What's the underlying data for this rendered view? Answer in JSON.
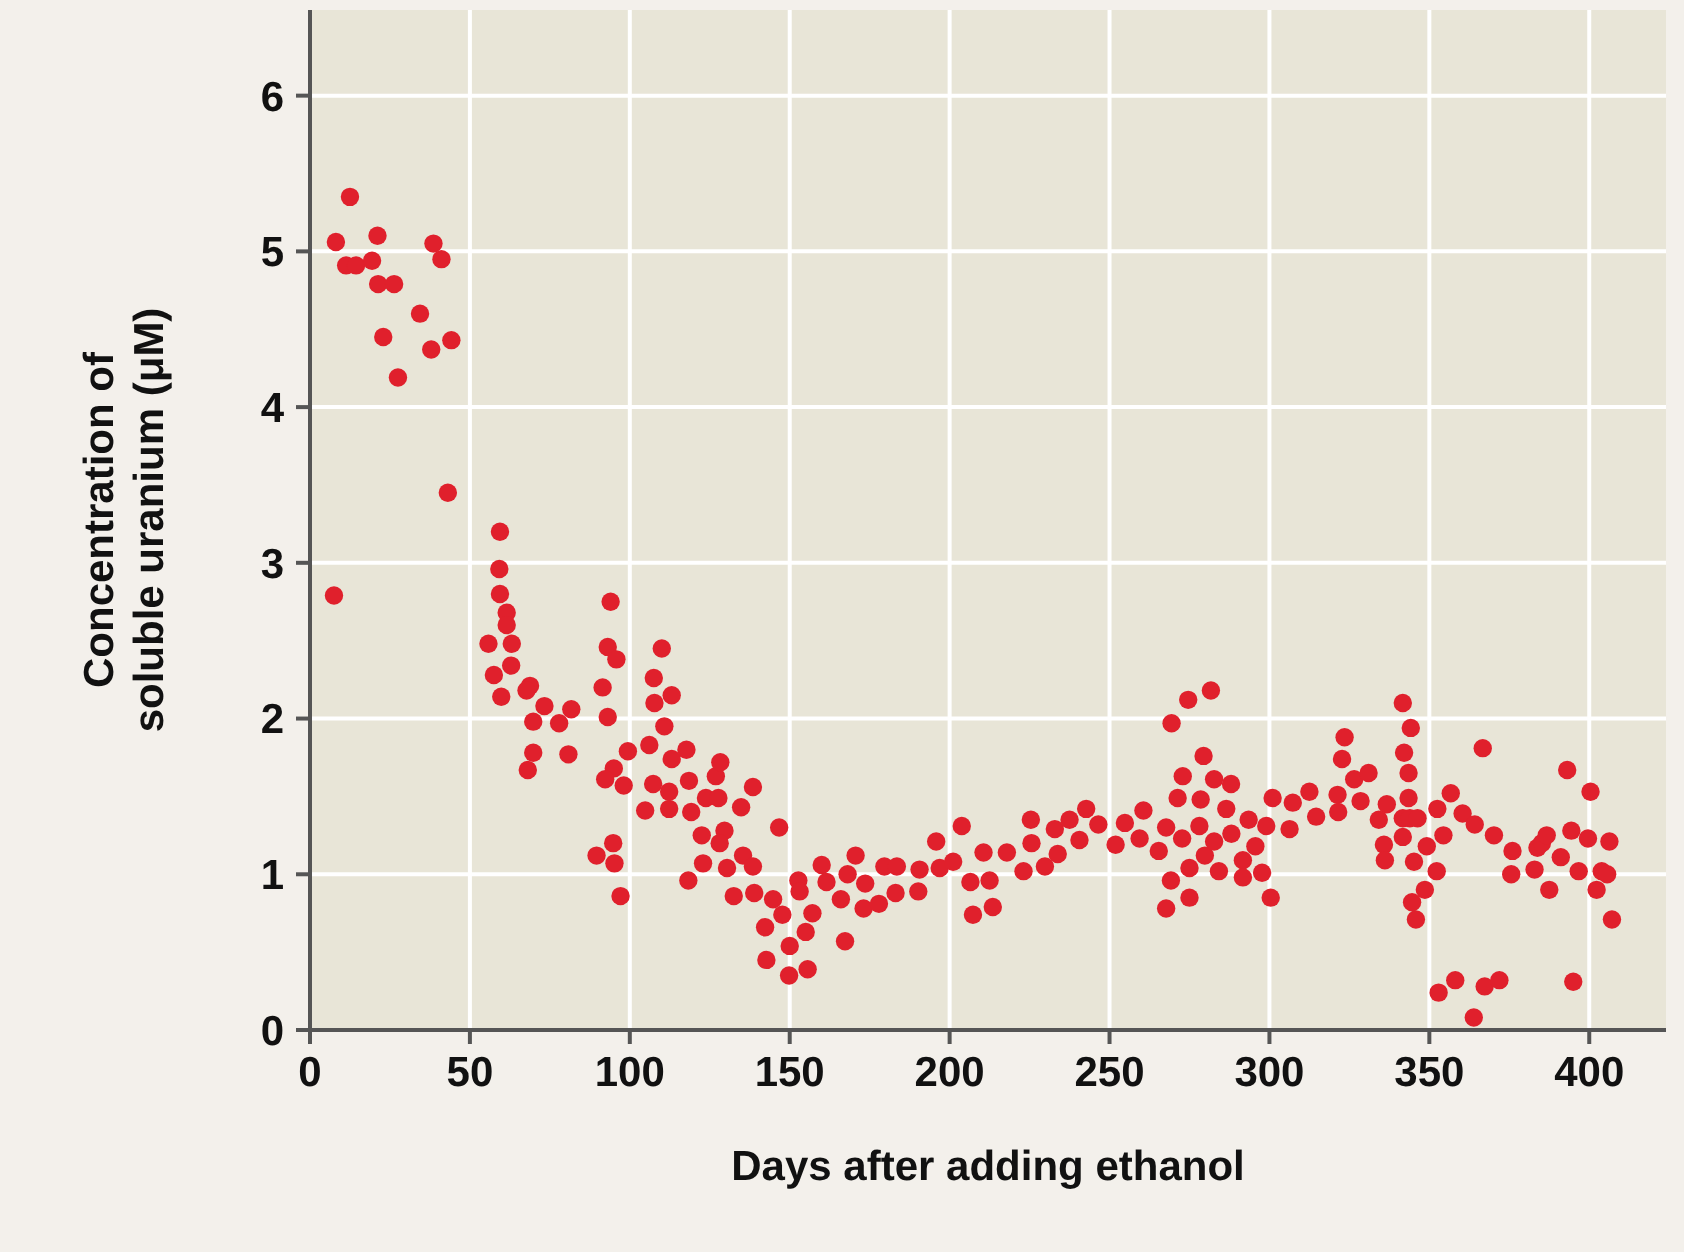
{
  "chart_data": {
    "type": "scatter",
    "xlabel": "Days after adding ethanol",
    "ylabel": "Concentration of\nsoluble uranium (μM)",
    "xlim": [
      0,
      424
    ],
    "ylim": [
      0,
      6.55
    ],
    "xticks": [
      0,
      50,
      100,
      150,
      200,
      250,
      300,
      350,
      400
    ],
    "yticks": [
      0,
      1,
      2,
      3,
      4,
      5,
      6
    ],
    "grid": true,
    "marker": "circle",
    "series": [
      {
        "color": "#e0202c",
        "x": [
          7.5,
          8.1,
          12.5,
          11.3,
          14.4,
          19.4,
          21.1,
          38.6,
          41.1,
          21.3,
          26.3,
          34.4,
          22.9,
          37.9,
          44.2,
          27.5,
          43.1,
          59.4,
          59.2,
          59.4,
          61.5,
          61.5,
          55.8,
          63.1,
          62.9,
          57.5,
          59.8,
          68.8,
          67.7,
          69.8,
          73.3,
          77.9,
          81.7,
          69.8,
          80.8,
          68.1,
          94.0,
          93.1,
          95.8,
          91.5,
          93.1,
          95.0,
          92.3,
          98.1,
          99.4,
          89.6,
          94.8,
          95.2,
          97.1,
          110,
          107.5,
          107.7,
          113.1,
          110.8,
          106.1,
          113.1,
          107.3,
          112.3,
          104.8,
          112.3,
          117.7,
          118.5,
          119.2,
          122.5,
          118.3,
          122.9,
          123.8,
          127.7,
          126.9,
          128.3,
          129.6,
          128.1,
          130.4,
          132.5,
          134.8,
          135.4,
          138.5,
          138.5,
          138.9,
          144.8,
          146.7,
          147.7,
          142.3,
          142.7,
          150,
          149.8,
          152.7,
          153.1,
          157.1,
          155,
          155.6,
          160,
          161.5,
          166,
          167.3,
          168.1,
          170.6,
          173.6,
          173.1,
          177.9,
          179.6,
          183.5,
          183.1,
          190.2,
          190.6,
          195.8,
          196.9,
          201.1,
          203.8,
          206.5,
          207.3,
          210.6,
          212.5,
          213.5,
          217.9,
          223.1,
          225.4,
          225.6,
          229.8,
          232.9,
          233.8,
          237.5,
          240.6,
          242.7,
          246.5,
          251.9,
          254.8,
          259.4,
          260.6,
          265.4,
          267.7,
          269.2,
          267.7,
          269.4,
          271.3,
          272.7,
          272.9,
          274.6,
          275,
          275,
          278.1,
          278.5,
          279.4,
          279.8,
          281.7,
          282.7,
          282.7,
          284.2,
          286.5,
          288,
          288.1,
          291.7,
          291.7,
          293.5,
          295.6,
          297.7,
          299,
          300.4,
          301,
          306.3,
          307.3,
          312.5,
          314.6,
          321.3,
          321.5,
          322.7,
          323.5,
          326.5,
          328.5,
          331,
          334.2,
          335.8,
          336.1,
          336.7,
          341.7,
          342.1,
          344.2,
          343.5,
          343.5,
          341.7,
          343.9,
          346.3,
          341.7,
          345.2,
          349.2,
          344.6,
          345.8,
          348.6,
          352.3,
          352.5,
          354.4,
          356.7,
          360.4,
          364.2,
          366.7,
          370.2,
          352.9,
          358.1,
          363.9,
          367.3,
          371.9,
          376,
          375.6,
          382.9,
          383.8,
          385.2,
          386.7,
          387.5,
          391.1,
          393.1,
          394.4,
          395,
          396.7,
          399.6,
          400.4,
          402.3,
          403.9,
          405.6,
          406.3,
          407.1
        ],
        "values": [
          2.79,
          5.06,
          5.35,
          4.91,
          4.91,
          4.94,
          5.1,
          5.05,
          4.95,
          4.79,
          4.79,
          4.6,
          4.45,
          4.37,
          4.43,
          4.19,
          3.45,
          3.2,
          2.96,
          2.8,
          2.68,
          2.6,
          2.48,
          2.48,
          2.34,
          2.28,
          2.14,
          2.21,
          2.18,
          1.98,
          2.08,
          1.97,
          2.06,
          1.78,
          1.77,
          1.67,
          2.75,
          2.46,
          2.38,
          2.2,
          2.01,
          1.68,
          1.61,
          1.57,
          1.79,
          1.12,
          1.2,
          1.07,
          0.86,
          2.45,
          2.26,
          2.1,
          2.15,
          1.95,
          1.83,
          1.74,
          1.58,
          1.53,
          1.41,
          1.42,
          1.8,
          1.6,
          1.4,
          1.25,
          0.96,
          1.07,
          1.49,
          1.49,
          1.63,
          1.72,
          1.28,
          1.2,
          1.04,
          0.86,
          1.43,
          1.12,
          1.56,
          1.05,
          0.88,
          0.84,
          1.3,
          0.74,
          0.66,
          0.45,
          0.54,
          0.35,
          0.96,
          0.89,
          0.75,
          0.63,
          0.39,
          1.06,
          0.95,
          0.84,
          0.57,
          1.0,
          1.12,
          0.94,
          0.78,
          0.81,
          1.05,
          1.05,
          0.88,
          0.89,
          1.03,
          1.21,
          1.04,
          1.08,
          1.31,
          0.95,
          0.74,
          1.14,
          0.96,
          0.79,
          1.14,
          1.02,
          1.35,
          1.2,
          1.05,
          1.29,
          1.13,
          1.35,
          1.22,
          1.42,
          1.32,
          1.19,
          1.33,
          1.23,
          1.41,
          1.15,
          1.3,
          0.96,
          0.78,
          1.97,
          1.49,
          1.23,
          1.63,
          2.12,
          1.04,
          0.85,
          1.31,
          1.48,
          1.76,
          1.12,
          2.18,
          1.61,
          1.21,
          1.02,
          1.42,
          1.58,
          1.26,
          1.09,
          0.98,
          1.35,
          1.18,
          1.01,
          1.31,
          0.85,
          1.49,
          1.29,
          1.46,
          1.53,
          1.37,
          1.51,
          1.4,
          1.74,
          1.88,
          1.61,
          1.47,
          1.65,
          1.35,
          1.19,
          1.09,
          1.45,
          2.1,
          1.78,
          1.94,
          1.65,
          1.49,
          1.36,
          1.36,
          1.36,
          1.24,
          1.08,
          1.18,
          0.82,
          0.71,
          0.9,
          1.02,
          1.42,
          1.25,
          1.52,
          1.39,
          1.32,
          1.81,
          1.25,
          0.24,
          0.32,
          0.08,
          0.28,
          0.32,
          1.15,
          1.0,
          1.03,
          1.17,
          1.2,
          1.25,
          0.9,
          1.11,
          1.67,
          1.28,
          0.31,
          1.02,
          1.23,
          1.53,
          0.9,
          1.02,
          1.0,
          1.21,
          0.71
        ]
      }
    ]
  }
}
